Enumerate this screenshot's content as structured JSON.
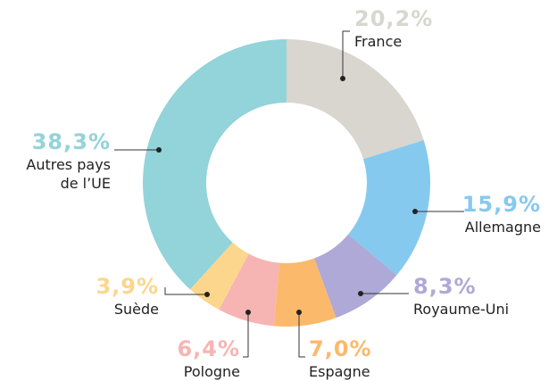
{
  "chart_data": {
    "type": "donut",
    "categories": [
      "France",
      "Allemagne",
      "Royaume-Uni",
      "Espagne",
      "Pologne",
      "Suède",
      "Autres pays de l’UE"
    ],
    "values": [
      20.2,
      15.9,
      8.3,
      7.0,
      6.4,
      3.9,
      38.3
    ],
    "value_labels": [
      "20,2%",
      "15,9%",
      "8,3%",
      "7,0%",
      "6,4%",
      "3,9%",
      "38,3%"
    ],
    "colors": [
      "#d8d6cf",
      "#86c9ef",
      "#aea9d6",
      "#fbb96b",
      "#f6b5b2",
      "#fdd68d",
      "#93d3da"
    ]
  }
}
